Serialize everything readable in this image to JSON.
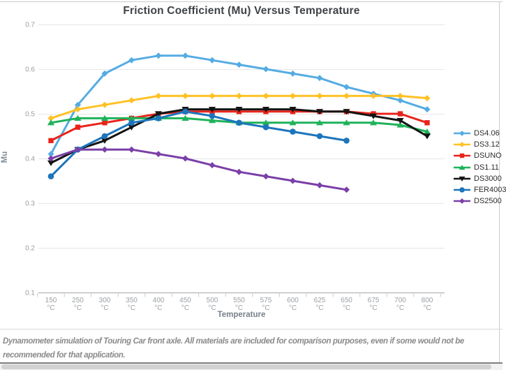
{
  "chart": {
    "title": "Friction Coefficient (Mu) Versus Temperature",
    "x_axis_title": "Temperature",
    "y_axis_title": "Mu"
  },
  "footer": {
    "text": "Dynamometer simulation of Touring Car front axle. All materials are included for comparison purposes, even if some would not be recommended for that application."
  },
  "chart_data": {
    "type": "line",
    "title": "Friction Coefficient (Mu) Versus Temperature",
    "xlabel": "Temperature",
    "ylabel": "Mu",
    "ylim": [
      0.1,
      0.7
    ],
    "yticks": [
      0.1,
      0.2,
      0.3,
      0.4,
      0.5,
      0.6,
      0.7
    ],
    "grid": "horizontal",
    "legend_position": "right",
    "category_unit": "°C",
    "categories": [
      "150",
      "250",
      "300",
      "350",
      "400",
      "450",
      "500",
      "550",
      "575",
      "600",
      "625",
      "650",
      "675",
      "700",
      "800"
    ],
    "series": [
      {
        "name": "DS4.06",
        "color": "#55ACE2",
        "marker": "diamond",
        "values": [
          0.41,
          0.52,
          0.59,
          0.62,
          0.63,
          0.63,
          0.62,
          0.61,
          0.6,
          0.59,
          0.58,
          0.56,
          0.545,
          0.53,
          0.51
        ]
      },
      {
        "name": "DS3.12",
        "color": "#FFC125",
        "marker": "diamond",
        "values": [
          0.49,
          0.51,
          0.52,
          0.53,
          0.54,
          0.54,
          0.54,
          0.54,
          0.54,
          0.54,
          0.54,
          0.54,
          0.54,
          0.54,
          0.535
        ]
      },
      {
        "name": "DSUNO",
        "color": "#E8231A",
        "marker": "square",
        "values": [
          0.44,
          0.47,
          0.48,
          0.49,
          0.5,
          0.505,
          0.505,
          0.505,
          0.505,
          0.505,
          0.505,
          0.505,
          0.5,
          0.5,
          0.48
        ]
      },
      {
        "name": "DS1.11",
        "color": "#1FB25A",
        "marker": "triangle-up",
        "values": [
          0.48,
          0.49,
          0.49,
          0.49,
          0.49,
          0.49,
          0.485,
          0.48,
          0.48,
          0.48,
          0.48,
          0.48,
          0.48,
          0.475,
          0.46
        ]
      },
      {
        "name": "DS3000",
        "color": "#141414",
        "marker": "triangle-down",
        "values": [
          0.39,
          0.42,
          0.44,
          0.47,
          0.5,
          0.51,
          0.51,
          0.51,
          0.51,
          0.51,
          0.505,
          0.505,
          0.495,
          0.485,
          0.45
        ]
      },
      {
        "name": "FER4003",
        "color": "#1C75BC",
        "marker": "circle",
        "values": [
          0.36,
          0.42,
          0.45,
          0.48,
          0.49,
          0.505,
          0.495,
          0.48,
          0.47,
          0.46,
          0.45,
          0.44,
          null,
          null,
          null
        ]
      },
      {
        "name": "DS2500",
        "color": "#7A3FA8",
        "marker": "diamond",
        "values": [
          0.4,
          0.42,
          0.42,
          0.42,
          0.41,
          0.4,
          0.385,
          0.37,
          0.36,
          0.35,
          0.34,
          0.33,
          null,
          null,
          null
        ]
      }
    ]
  }
}
